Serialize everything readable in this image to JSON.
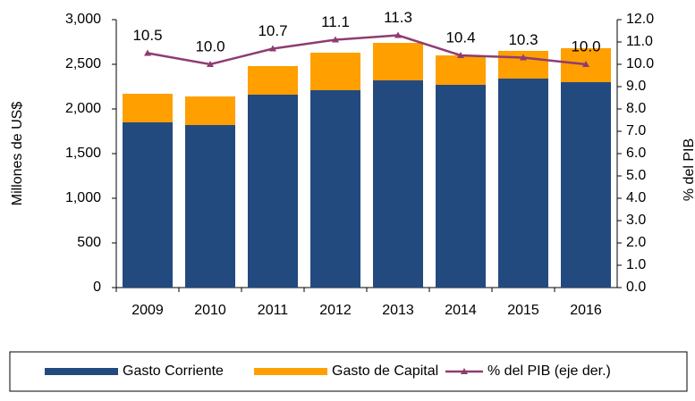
{
  "chart_data": {
    "type": "bar",
    "stacked": true,
    "ylabel": "Millones de US$",
    "y2label": "% del PIB",
    "categories": [
      "2009",
      "2010",
      "2011",
      "2012",
      "2013",
      "2014",
      "2015",
      "2016"
    ],
    "series": [
      {
        "name": "Gasto Corriente",
        "color": "#234a7f",
        "values": [
          1850,
          1820,
          2160,
          2210,
          2320,
          2270,
          2340,
          2300
        ]
      },
      {
        "name": "Gasto de Capital",
        "color": "#ff9f00",
        "values": [
          320,
          320,
          320,
          420,
          420,
          330,
          310,
          380
        ]
      },
      {
        "name": "% del PIB (eje der.)",
        "color": "#8e3c72",
        "type": "line",
        "axis": "y2",
        "values": [
          10.5,
          10,
          10.7,
          11.1,
          11.3,
          10.4,
          10.3,
          10
        ],
        "value_labels": [
          "10.5",
          "10.0",
          "10.7",
          "11.1",
          "11.3",
          "10.4",
          "10.3",
          "10.0"
        ]
      }
    ],
    "ylim": [
      0,
      3000
    ],
    "yticks": [
      0,
      500,
      {
        "value": 1000,
        "label": "1,000"
      },
      {
        "value": 1500,
        "label": "1,500"
      },
      {
        "value": 2000,
        "label": "2,000"
      },
      {
        "value": 2500,
        "label": "2,500"
      },
      {
        "value": 3000,
        "label": "3,000"
      }
    ],
    "y2lim": [
      0,
      12
    ],
    "y2ticks": [
      {
        "value": 0,
        "label": "0.0"
      },
      {
        "value": 1,
        "label": "1.0"
      },
      {
        "value": 2,
        "label": "2.0"
      },
      {
        "value": 3,
        "label": "3.0"
      },
      {
        "value": 4,
        "label": "4.0"
      },
      {
        "value": 5,
        "label": "5.0"
      },
      {
        "value": 6,
        "label": "6.0"
      },
      {
        "value": 7,
        "label": "7.0"
      },
      {
        "value": 8,
        "label": "8.0"
      },
      {
        "value": 9,
        "label": "9.0"
      },
      {
        "value": 10,
        "label": "10.0"
      },
      {
        "value": 11,
        "label": "11.0"
      },
      {
        "value": 12,
        "label": "12.0"
      }
    ],
    "legend": "bottom",
    "grid": false
  }
}
